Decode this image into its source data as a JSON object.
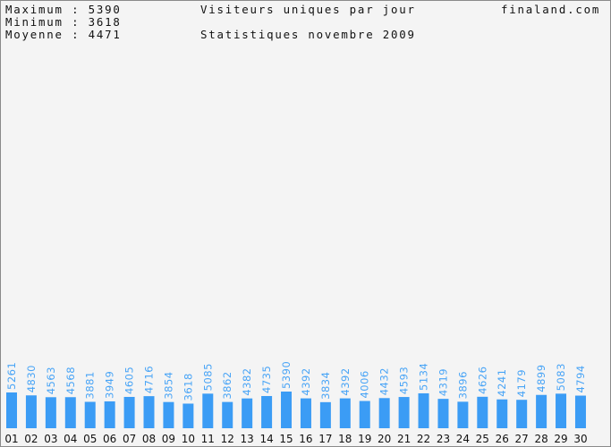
{
  "header": {
    "max_label": "Maximum : 5390",
    "min_label": "Minimum : 3618",
    "avg_label": "Moyenne : 4471",
    "title": "Visiteurs uniques par jour",
    "subtitle": "Statistiques novembre 2009",
    "site": "finaland.com"
  },
  "colors": {
    "bar": "#3b9cf5",
    "value_label": "#48a4f6",
    "background": "#f4f4f4"
  },
  "chart_data": {
    "type": "bar",
    "title": "Visiteurs uniques par jour",
    "subtitle": "Statistiques novembre 2009",
    "categories": [
      "01",
      "02",
      "03",
      "04",
      "05",
      "06",
      "07",
      "08",
      "09",
      "10",
      "11",
      "12",
      "13",
      "14",
      "15",
      "16",
      "17",
      "18",
      "19",
      "20",
      "21",
      "22",
      "23",
      "24",
      "25",
      "26",
      "27",
      "28",
      "29",
      "30"
    ],
    "values": [
      5261,
      4830,
      4563,
      4568,
      3881,
      3949,
      4605,
      4716,
      3854,
      3618,
      5085,
      3862,
      4382,
      4735,
      5390,
      4392,
      3834,
      4392,
      4006,
      4432,
      4593,
      5134,
      4319,
      3896,
      4626,
      4241,
      4179,
      4899,
      5083,
      4794
    ],
    "ylim": [
      0,
      5390
    ],
    "grid": false
  }
}
